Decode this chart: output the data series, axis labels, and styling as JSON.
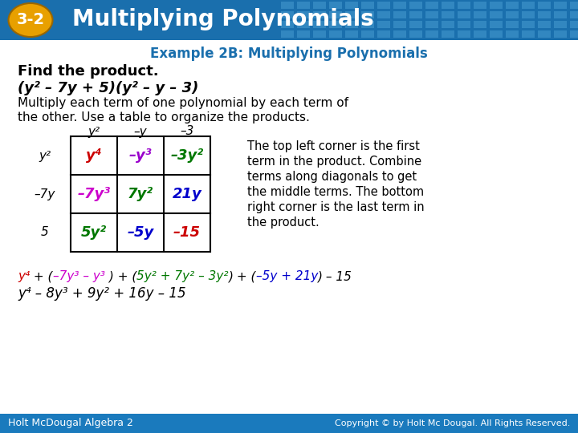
{
  "header_bg_color": "#1a6fad",
  "header_text": "Multiplying Polynomials",
  "badge_color": "#e8a000",
  "badge_text": "3-2",
  "body_bg_color": "#ffffff",
  "subtitle_color": "#1a6fad",
  "subtitle_text": "Example 2B: Multiplying Polynomials",
  "bold_line1": "Find the product.",
  "bold_line2": "(y² – 7y + 5)(y² – y – 3)",
  "normal_line1": "Multiply each term of one polynomial by each term of",
  "normal_line2": "the other. Use a table to organize the products.",
  "col_headers": [
    "y²",
    "–y",
    "–3"
  ],
  "row_headers": [
    "y²",
    "–7y",
    "5"
  ],
  "table_data": [
    [
      "y⁴",
      "–y³",
      "–3y²"
    ],
    [
      "–7y³",
      "7y²",
      "21y"
    ],
    [
      "5y²",
      "–5y",
      "–15"
    ]
  ],
  "cell_text_colors": [
    [
      "#cc0000",
      "#9900cc",
      "#007700"
    ],
    [
      "#cc00cc",
      "#007700",
      "#0000cc"
    ],
    [
      "#007700",
      "#0000cc",
      "#cc0000"
    ]
  ],
  "side_note_lines": [
    "The top left corner is the first",
    "term in the product. Combine",
    "terms along diagonals to get",
    "the middle terms. The bottom",
    "right corner is the last term in",
    "the product."
  ],
  "footer_bg_color": "#1a7abd",
  "footer_left": "Holt McDougal Algebra 2",
  "footer_right": "Copyright © by Holt Mc Dougal. All Rights Reserved."
}
